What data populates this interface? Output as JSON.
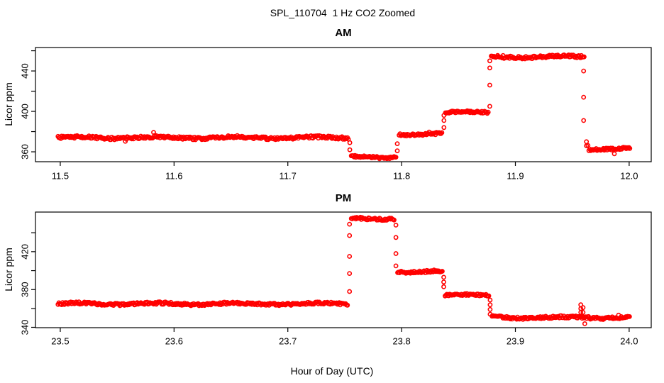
{
  "page": {
    "title": "SPL_110704  1 Hz CO2 Zoomed",
    "xlabel": "Hour of Day (UTC)",
    "background": "#FFFFFF",
    "axis_color": "#000000",
    "point_color": "#FF0000",
    "marker": "open-circle"
  },
  "chart_data": [
    {
      "type": "scatter",
      "title": "AM",
      "ylabel": "Licor ppm",
      "series_color": "#FF0000",
      "xlim": [
        11.4782,
        12.0194
      ],
      "ylim": [
        350.2,
        463.2
      ],
      "xticks": [
        11.5,
        11.6,
        11.7,
        11.8,
        11.9,
        12.0
      ],
      "yticks": [
        360,
        380,
        400,
        420,
        440,
        460
      ],
      "ytick_labeled": [
        360,
        400,
        440
      ],
      "grid": false,
      "steps": [
        {
          "t0": 11.498,
          "t1": 11.7535,
          "ppm": 374,
          "noise": 1.3
        },
        {
          "t0": 11.7558,
          "t1": 11.7952,
          "ppm": 355,
          "noise": 1.1
        },
        {
          "t0": 11.7978,
          "t1": 11.836,
          "ppm": 377.5,
          "noise": 1.1
        },
        {
          "t0": 11.8385,
          "t1": 11.8762,
          "ppm": 399,
          "noise": 1.1
        },
        {
          "t0": 11.8788,
          "t1": 11.9608,
          "ppm": 454,
          "noise": 1.3
        },
        {
          "t0": 11.9638,
          "t1": 12.001,
          "ppm": 363,
          "noise": 1.1
        }
      ],
      "transitions": [
        {
          "t": 11.7545,
          "ppms": [
            369,
            362
          ]
        },
        {
          "t": 11.7962,
          "ppms": [
            361,
            368
          ]
        },
        {
          "t": 11.8372,
          "ppms": [
            384,
            391,
            396
          ]
        },
        {
          "t": 11.8775,
          "ppms": [
            405,
            426,
            443,
            450
          ]
        },
        {
          "t": 11.96,
          "ppms": [
            440,
            414,
            391
          ]
        },
        {
          "t": 11.9625,
          "ppms": [
            370,
            366
          ]
        }
      ]
    },
    {
      "type": "scatter",
      "title": "PM",
      "ylabel": "Licor ppm",
      "series_color": "#FF0000",
      "xlim": [
        23.4782,
        24.0194
      ],
      "ylim": [
        339.8,
        461.8
      ],
      "xticks": [
        23.5,
        23.6,
        23.7,
        23.8,
        23.9,
        24.0
      ],
      "yticks": [
        340,
        360,
        380,
        400,
        420,
        440
      ],
      "ytick_labeled": [
        340,
        380,
        420
      ],
      "grid": false,
      "steps": [
        {
          "t0": 23.498,
          "t1": 23.7528,
          "ppm": 365,
          "noise": 1.3
        },
        {
          "t0": 23.7558,
          "t1": 23.7938,
          "ppm": 455,
          "noise": 1.2
        },
        {
          "t0": 23.7965,
          "t1": 23.8358,
          "ppm": 399,
          "noise": 1.2
        },
        {
          "t0": 23.8382,
          "t1": 23.8768,
          "ppm": 374,
          "noise": 1.1
        },
        {
          "t0": 23.8795,
          "t1": 24.001,
          "ppm": 350.5,
          "noise": 1.4
        }
      ],
      "transitions": [
        {
          "t": 23.7542,
          "ppms": [
            378,
            397,
            415,
            437,
            449
          ]
        },
        {
          "t": 23.795,
          "ppms": [
            448,
            435,
            418,
            405
          ]
        },
        {
          "t": 23.837,
          "ppms": [
            393,
            388,
            383
          ]
        },
        {
          "t": 23.8778,
          "ppms": [
            369,
            364,
            359,
            354
          ]
        },
        {
          "t": 23.9575,
          "ppms": [
            356,
            360,
            364
          ]
        },
        {
          "t": 23.9595,
          "ppms": [
            361,
            356
          ]
        },
        {
          "t": 23.961,
          "ppms": [
            344
          ]
        }
      ]
    }
  ]
}
